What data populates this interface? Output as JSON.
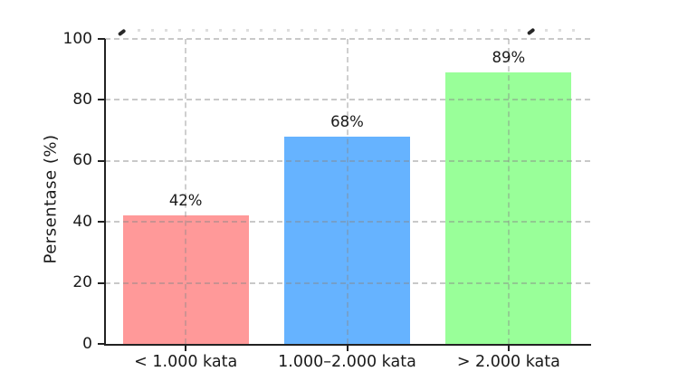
{
  "chart_data": {
    "type": "bar",
    "title": "",
    "title_clipped": true,
    "categories": [
      "< 1.000 kata",
      "1.000–2.000 kata",
      "> 2.000 kata"
    ],
    "values": [
      42,
      68,
      89
    ],
    "value_labels": [
      "42%",
      "68%",
      "89%"
    ],
    "xlabel": "",
    "ylabel": "Persentase (%)",
    "ylim": [
      0,
      100
    ],
    "yticks": [
      0,
      20,
      40,
      60,
      80,
      100
    ],
    "ytick_labels": [
      "0",
      "20",
      "40",
      "60",
      "80",
      "100"
    ],
    "bar_colors": [
      "#ff9999",
      "#66b3ff",
      "#99ff99"
    ],
    "grid": true,
    "grid_style": "dashed",
    "legend": false,
    "background_color": "#ffffff",
    "axis_color": "#222222",
    "text_color": "#1a1a1a"
  }
}
